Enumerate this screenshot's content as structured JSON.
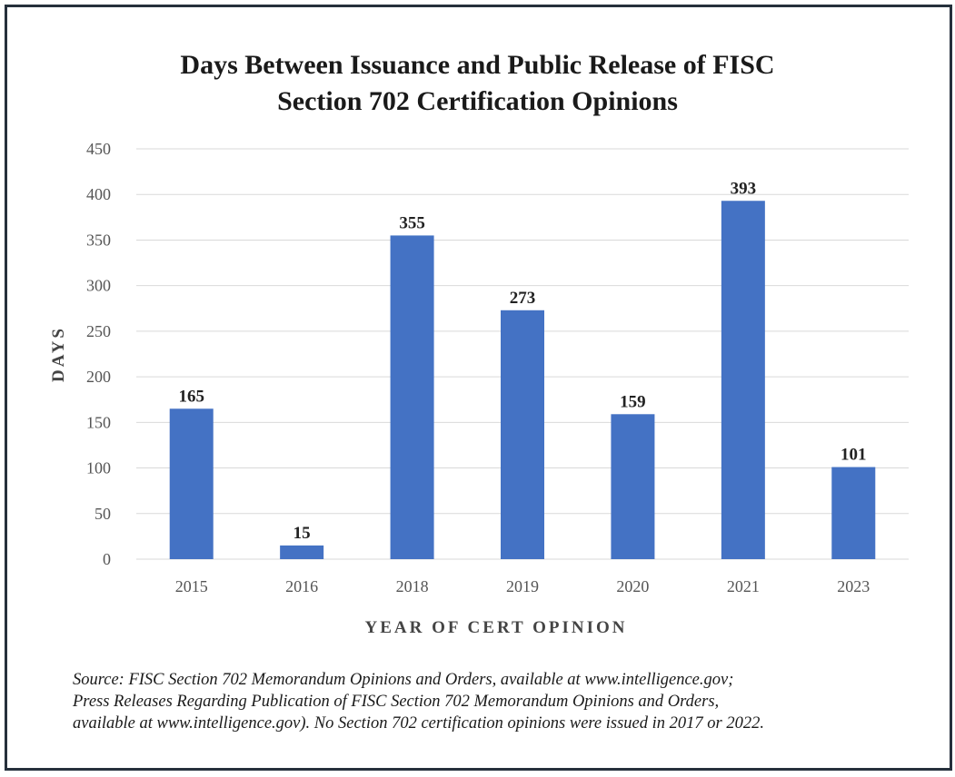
{
  "chart_data": {
    "type": "bar",
    "title_lines": [
      "Days Between Issuance and Public Release of FISC",
      "Section 702 Certification Opinions"
    ],
    "xlabel": "YEAR OF CERT OPINION",
    "ylabel": "DAYS",
    "categories": [
      "2015",
      "2016",
      "2018",
      "2019",
      "2020",
      "2021",
      "2023"
    ],
    "values": [
      165,
      15,
      355,
      273,
      159,
      393,
      101
    ],
    "data_labels": [
      "165",
      "15",
      "355",
      "273",
      "159",
      "393",
      "101"
    ],
    "ylim": [
      0,
      450
    ],
    "yticks": [
      0,
      50,
      100,
      150,
      200,
      250,
      300,
      350,
      400,
      450
    ],
    "ytick_labels": [
      "0",
      "50",
      "100",
      "150",
      "200",
      "250",
      "300",
      "350",
      "400",
      "450"
    ],
    "grid": true,
    "legend": "none",
    "bar_color": "#4472c4",
    "gridline_color": "#d9d9d9"
  },
  "source_note": {
    "lines": [
      "Source: FISC Section 702 Memorandum Opinions and Orders, available at www.intelligence.gov;",
      "Press Releases Regarding Publication of FISC Section 702 Memorandum Opinions and Orders,",
      "available at www.intelligence.gov). No Section 702 certification opinions were issued in 2017 or 2022."
    ]
  }
}
